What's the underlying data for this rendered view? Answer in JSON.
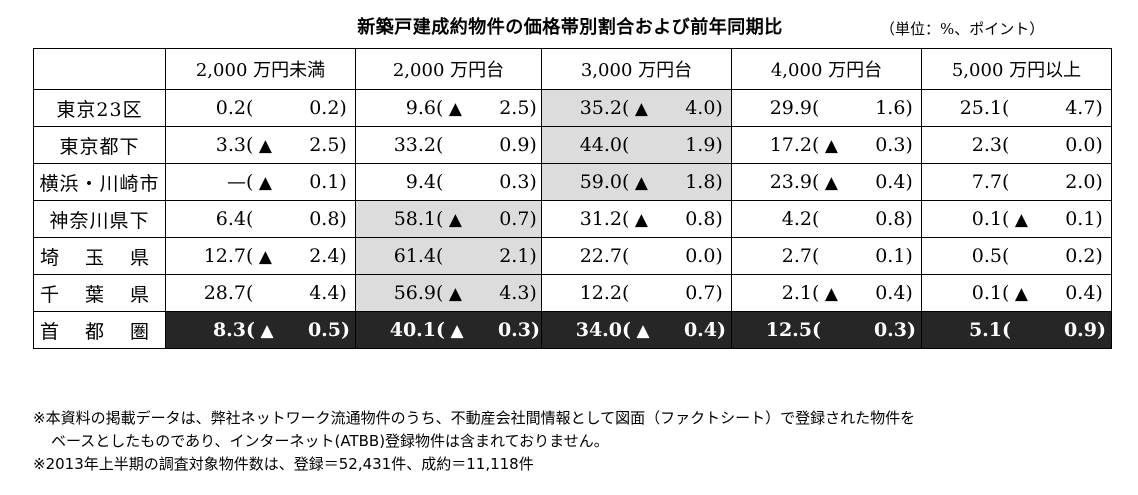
{
  "title": "新築戸建成約物件の価格帯別割合および前年同期比",
  "unit": "（単位：%、ポイント）",
  "columns": [
    "2,000 万円未満",
    "2,000 万円台",
    "3,000 万円台",
    "4,000 万円台",
    "5,000 万円以上"
  ],
  "rows": [
    {
      "name": "東京23区",
      "cells": [
        {
          "value": "0.2",
          "marker": "",
          "diff": "0.2"
        },
        {
          "value": "9.6",
          "marker": "▲",
          "diff": "2.5"
        },
        {
          "value": "35.2",
          "marker": "▲",
          "diff": "4.0"
        },
        {
          "value": "29.9",
          "marker": "",
          "diff": "1.6"
        },
        {
          "value": "25.1",
          "marker": "",
          "diff": "4.7"
        }
      ]
    },
    {
      "name": "東京都下",
      "cells": [
        {
          "value": "3.3",
          "marker": "▲",
          "diff": "2.5"
        },
        {
          "value": "33.2",
          "marker": "",
          "diff": "0.9"
        },
        {
          "value": "44.0",
          "marker": "",
          "diff": "1.9"
        },
        {
          "value": "17.2",
          "marker": "▲",
          "diff": "0.3"
        },
        {
          "value": "2.3",
          "marker": "",
          "diff": "0.0"
        }
      ]
    },
    {
      "name": "横浜・川崎市",
      "cells": [
        {
          "value": "—",
          "marker": "▲",
          "diff": "0.1"
        },
        {
          "value": "9.4",
          "marker": "",
          "diff": "0.3"
        },
        {
          "value": "59.0",
          "marker": "▲",
          "diff": "1.8"
        },
        {
          "value": "23.9",
          "marker": "▲",
          "diff": "0.4"
        },
        {
          "value": "7.7",
          "marker": "",
          "diff": "2.0"
        }
      ]
    },
    {
      "name": "神奈川県下",
      "cells": [
        {
          "value": "6.4",
          "marker": "",
          "diff": "0.8"
        },
        {
          "value": "58.1",
          "marker": "▲",
          "diff": "0.7"
        },
        {
          "value": "31.2",
          "marker": "▲",
          "diff": "0.8"
        },
        {
          "value": "4.2",
          "marker": "",
          "diff": "0.8"
        },
        {
          "value": "0.1",
          "marker": "▲",
          "diff": "0.1"
        }
      ]
    },
    {
      "name": "埼 玉 県",
      "cells": [
        {
          "value": "12.7",
          "marker": "▲",
          "diff": "2.4"
        },
        {
          "value": "61.4",
          "marker": "",
          "diff": "2.1"
        },
        {
          "value": "22.7",
          "marker": "",
          "diff": "0.0"
        },
        {
          "value": "2.7",
          "marker": "",
          "diff": "0.1"
        },
        {
          "value": "0.5",
          "marker": "",
          "diff": "0.2"
        }
      ]
    },
    {
      "name": "千 葉 県",
      "cells": [
        {
          "value": "28.7",
          "marker": "",
          "diff": "4.4"
        },
        {
          "value": "56.9",
          "marker": "▲",
          "diff": "4.3"
        },
        {
          "value": "12.2",
          "marker": "",
          "diff": "0.7"
        },
        {
          "value": "2.1",
          "marker": "▲",
          "diff": "0.4"
        },
        {
          "value": "0.1",
          "marker": "▲",
          "diff": "0.4"
        }
      ]
    }
  ],
  "total": {
    "name": "首 都 圏",
    "cells": [
      {
        "value": "8.3",
        "marker": "▲",
        "diff": "0.5"
      },
      {
        "value": "40.1",
        "marker": "▲",
        "diff": "0.3"
      },
      {
        "value": "34.0",
        "marker": "▲",
        "diff": "0.4"
      },
      {
        "value": "12.5",
        "marker": "",
        "diff": "0.3"
      },
      {
        "value": "5.1",
        "marker": "",
        "diff": "0.9"
      }
    ]
  },
  "notes": [
    "※本資料の掲載データは、弊社ネットワーク流通物件のうち、不動産会社間情報として図面（ファクトシート）で登録された物件を",
    "ベースとしたものであり、インターネット(ATBB)登録物件は含まれておりません。",
    "※2013年上半期の調査対象物件数は、登録＝52,431件、成約＝11,118件"
  ],
  "colors": {
    "highlight": "#dcdcdc",
    "total_bg": "#262626",
    "total_text": "#ffffff"
  }
}
